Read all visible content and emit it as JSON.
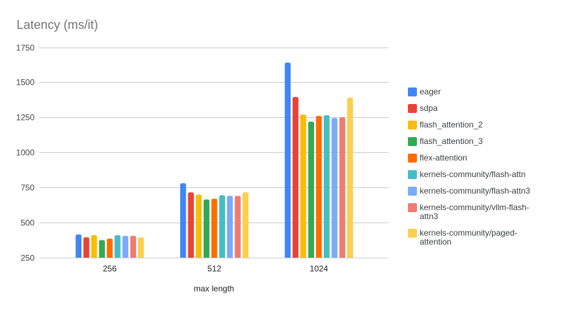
{
  "chart": {
    "title": "Latency (ms/it)"
  },
  "colors": {
    "title_text": "#757575",
    "axis_text": "#444444",
    "category_text": "#222222",
    "gridline": "#cccccc",
    "background": "#ffffff"
  },
  "chart_data": {
    "type": "bar",
    "title": "Latency (ms/it)",
    "xlabel": "max length",
    "ylabel": "",
    "categories": [
      "256",
      "512",
      "1024"
    ],
    "yticks": [
      250,
      500,
      750,
      1000,
      1250,
      1500,
      1750
    ],
    "ylim": [
      250,
      1750
    ],
    "grid": true,
    "legend_position": "right",
    "series": [
      {
        "name": "eager",
        "color": "#4285F4",
        "values": [
          415,
          780,
          1640
        ]
      },
      {
        "name": "sdpa",
        "color": "#EA4335",
        "values": [
          395,
          715,
          1395
        ]
      },
      {
        "name": "flash_attention_2",
        "color": "#FBBC04",
        "values": [
          410,
          700,
          1270
        ]
      },
      {
        "name": "flash_attention_3",
        "color": "#34A853",
        "values": [
          375,
          665,
          1220
        ]
      },
      {
        "name": "flex-attention",
        "color": "#FF6D01",
        "values": [
          385,
          670,
          1260
        ]
      },
      {
        "name": "kernels-community/flash-attn",
        "color": "#46BDC6",
        "values": [
          410,
          695,
          1265
        ]
      },
      {
        "name": "kernels-community/flash-attn3",
        "color": "#7BAAF7",
        "values": [
          405,
          690,
          1245
        ]
      },
      {
        "name": "kernels-community/vllm-flash-attn3",
        "color": "#F07B72",
        "values": [
          405,
          690,
          1250
        ]
      },
      {
        "name": "kernels-community/paged-attention",
        "color": "#FCD04F",
        "values": [
          395,
          715,
          1390
        ]
      }
    ]
  }
}
